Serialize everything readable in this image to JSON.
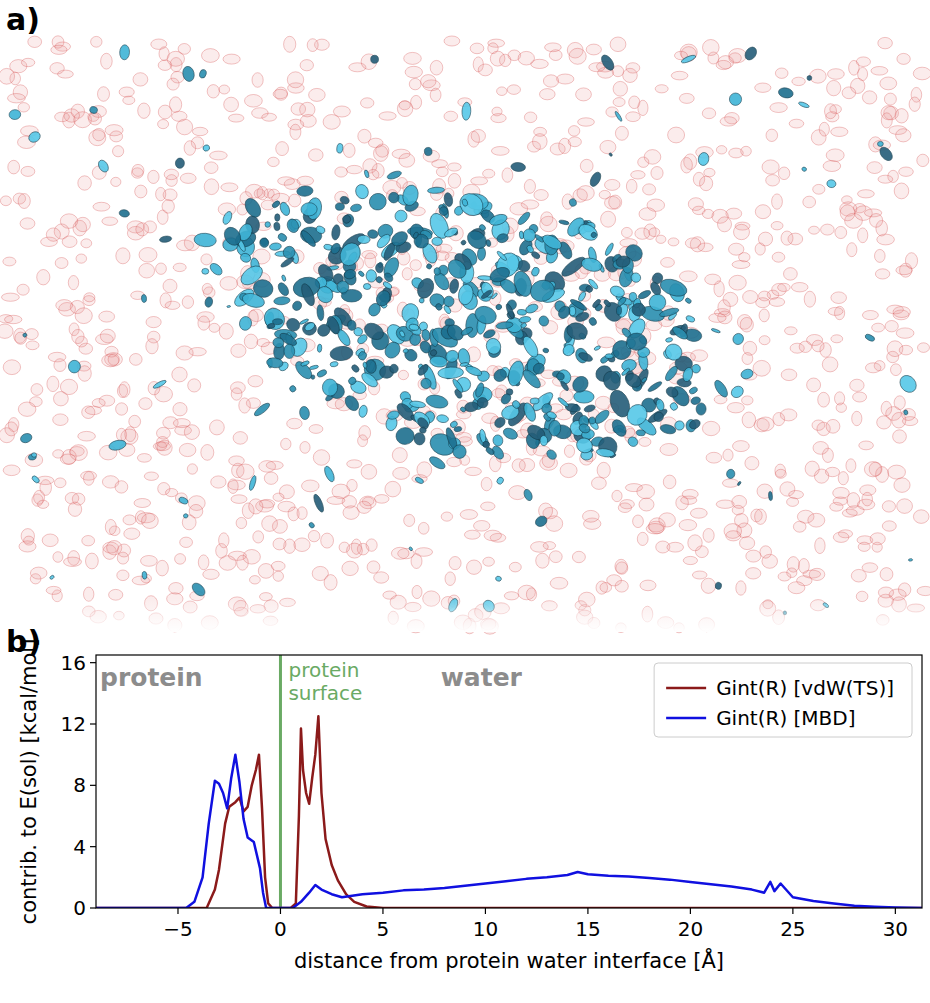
{
  "panel_a": {
    "label": "a)"
  },
  "chart_data": {
    "type": "line",
    "panel_label": "b)",
    "x_label": "distance from protein water interface [Å]",
    "y_label": "contrib. to E(sol) [kcal/mol]",
    "xlim": [
      -9,
      31.3
    ],
    "ylim": [
      0,
      16.5
    ],
    "xticks": [
      -5,
      0,
      5,
      10,
      15,
      20,
      25,
      30
    ],
    "yticks": [
      0,
      4,
      8,
      12,
      16
    ],
    "grid": false,
    "legend": "upper right",
    "vlines": [
      {
        "value": 0,
        "color": "#6aaa64"
      }
    ],
    "annotations": [
      {
        "text": "protein",
        "x": -6.3
      },
      {
        "text": "protein surface",
        "x": 0
      },
      {
        "text": "water",
        "x": 9.8
      }
    ],
    "series": [
      {
        "name": "Gint(R) [vdW(TS)]",
        "color": "#8b1a1a",
        "x": [
          -9,
          -3.6,
          -3.2,
          -3.0,
          -2.7,
          -2.5,
          -2.2,
          -2.0,
          -1.8,
          -1.6,
          -1.4,
          -1.2,
          -1.05,
          -0.9,
          -0.75,
          -0.6,
          -0.4,
          0.5,
          0.75,
          0.9,
          1.0,
          1.1,
          1.25,
          1.4,
          1.55,
          1.7,
          1.85,
          2.0,
          2.2,
          2.5,
          2.8,
          3.2,
          3.6,
          4.2,
          5.0,
          31.3
        ],
        "values": [
          0,
          0,
          1.2,
          2.5,
          5.5,
          6.6,
          6.9,
          7.2,
          6.3,
          6.6,
          8.0,
          9.0,
          10.0,
          6.5,
          2.0,
          0.3,
          0,
          0,
          0.3,
          6.0,
          11.7,
          9.0,
          7.5,
          6.8,
          8.5,
          10.0,
          12.5,
          7.5,
          4.5,
          2.8,
          1.8,
          0.9,
          0.4,
          0.1,
          0,
          0
        ]
      },
      {
        "name": "Gint(R) [MBD]",
        "color": "#1010e0",
        "x": [
          -9,
          -4.6,
          -4.2,
          -3.8,
          -3.5,
          -3.2,
          -3.0,
          -2.8,
          -2.6,
          -2.4,
          -2.2,
          -2.0,
          -1.8,
          -1.6,
          -1.3,
          -1.0,
          -0.85,
          -0.7,
          0.6,
          1.0,
          1.4,
          1.7,
          2.0,
          2.5,
          3.0,
          3.5,
          4.0,
          5.0,
          6.0,
          7.0,
          8.0,
          9.0,
          10.0,
          11.0,
          12.0,
          13.0,
          14.0,
          14.5,
          15.0,
          16.0,
          17.0,
          18.0,
          19.0,
          20.0,
          21.0,
          22.0,
          23.0,
          23.6,
          23.9,
          24.1,
          24.4,
          25.0,
          26.0,
          27.0,
          28.0,
          29.0,
          30.0,
          31.3
        ],
        "values": [
          0,
          0,
          0.4,
          2.0,
          5.5,
          8.3,
          8.1,
          7.5,
          6.5,
          8.5,
          10.0,
          8.2,
          5.8,
          4.6,
          4.3,
          2.6,
          1.0,
          0,
          0,
          0.4,
          1.0,
          1.5,
          1.2,
          0.9,
          0.7,
          0.8,
          0.9,
          1.0,
          1.15,
          1.2,
          1.3,
          1.45,
          1.6,
          1.75,
          1.9,
          2.0,
          2.15,
          2.35,
          2.2,
          2.1,
          2.05,
          1.95,
          1.85,
          1.7,
          1.55,
          1.4,
          1.2,
          1.0,
          1.7,
          1.1,
          1.6,
          0.7,
          0.45,
          0.3,
          0.15,
          0.08,
          0.04,
          0
        ]
      }
    ]
  }
}
